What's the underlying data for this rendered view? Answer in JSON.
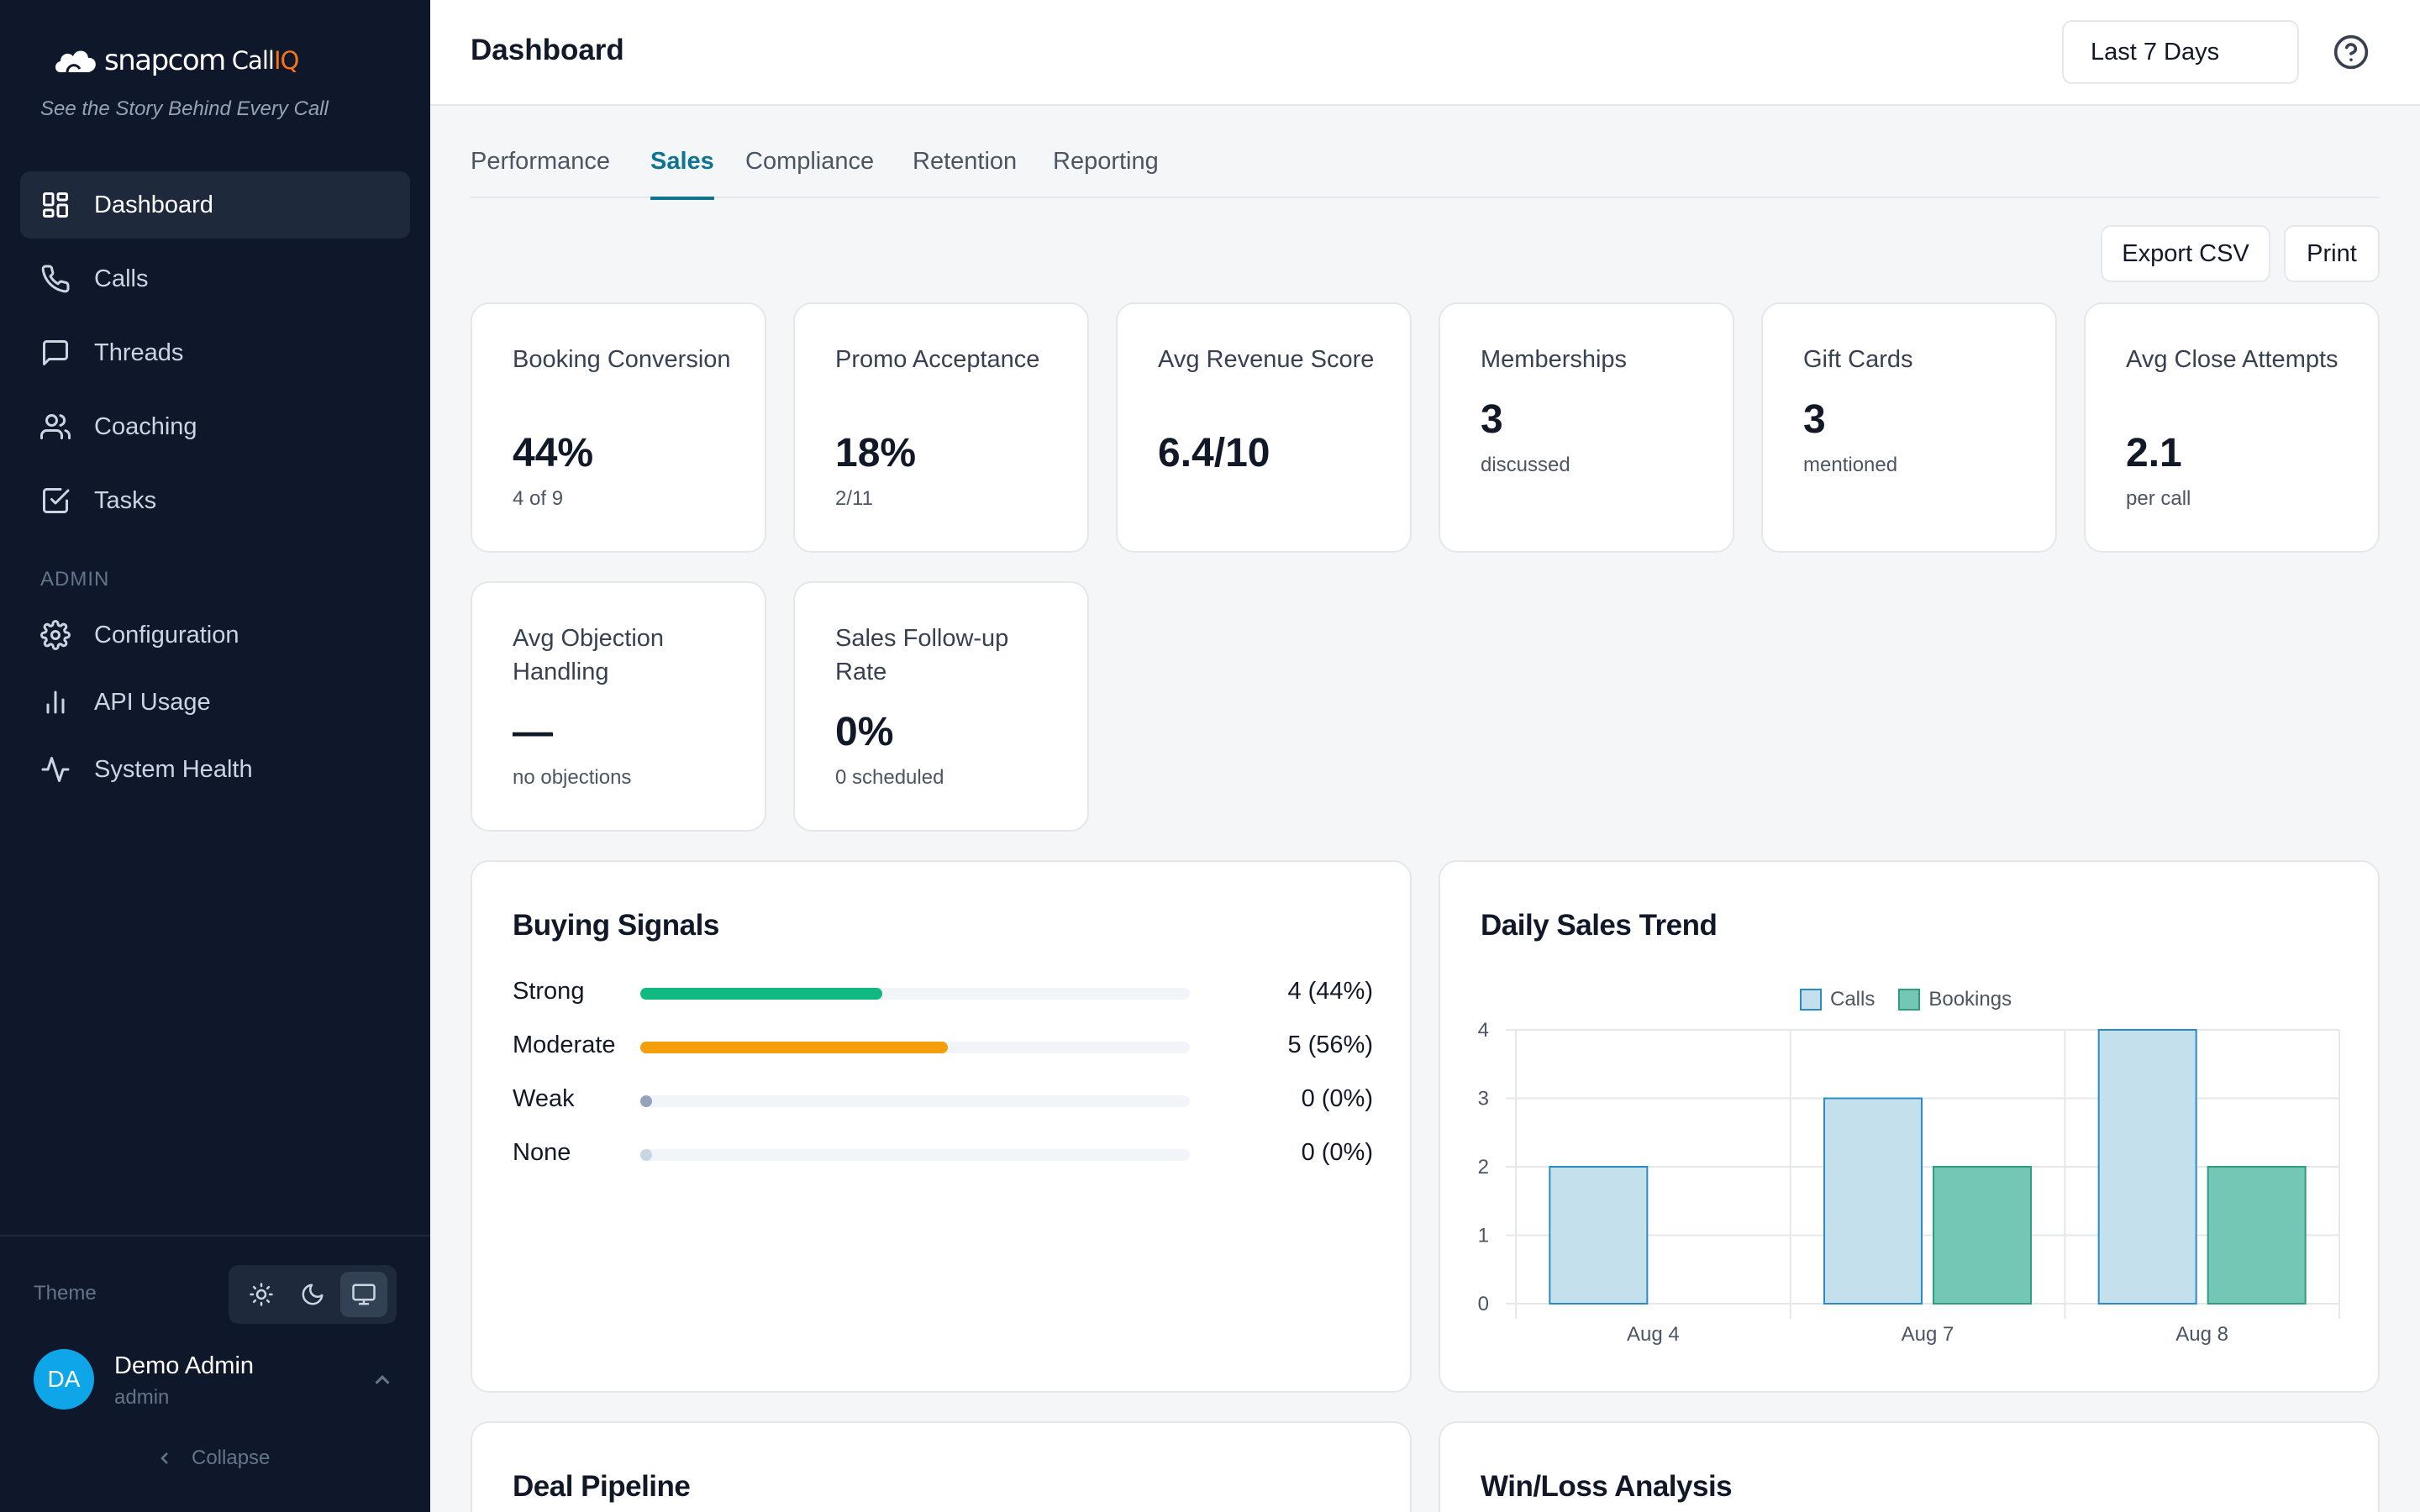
{
  "brand": {
    "name": "snapcom",
    "product_call": "Call",
    "product_iq": "IQ",
    "tagline": "See the Story Behind Every Call"
  },
  "sidebar": {
    "items": [
      {
        "label": "Dashboard",
        "icon": "dashboard-grid-icon",
        "active": true
      },
      {
        "label": "Calls",
        "icon": "phone-icon"
      },
      {
        "label": "Threads",
        "icon": "message-square-icon"
      },
      {
        "label": "Coaching",
        "icon": "users-icon"
      },
      {
        "label": "Tasks",
        "icon": "check-square-icon"
      }
    ],
    "admin_label": "ADMIN",
    "admin_items": [
      {
        "label": "Configuration",
        "icon": "gear-icon"
      },
      {
        "label": "API Usage",
        "icon": "bar-chart-icon"
      },
      {
        "label": "System Health",
        "icon": "activity-icon"
      }
    ],
    "theme_label": "Theme",
    "theme_options": [
      "sun-icon",
      "moon-icon",
      "monitor-icon"
    ],
    "theme_selected": "monitor-icon",
    "user": {
      "initials": "DA",
      "name": "Demo Admin",
      "role": "admin"
    },
    "collapse_label": "Collapse"
  },
  "header": {
    "title": "Dashboard",
    "date_range": "Last 7 Days"
  },
  "tabs": [
    {
      "label": "Performance"
    },
    {
      "label": "Sales",
      "active": true
    },
    {
      "label": "Compliance"
    },
    {
      "label": "Retention"
    },
    {
      "label": "Reporting"
    }
  ],
  "actions": {
    "export": "Export CSV",
    "print": "Print"
  },
  "kpis": [
    {
      "label": "Booking Conversion",
      "value": "44%",
      "sub": "4 of 9"
    },
    {
      "label": "Promo Acceptance",
      "value": "18%",
      "sub": "2/11"
    },
    {
      "label": "Avg Revenue Score",
      "value": "6.4/10",
      "sub": ""
    },
    {
      "label": "Memberships",
      "value": "3",
      "sub": "discussed"
    },
    {
      "label": "Gift Cards",
      "value": "3",
      "sub": "mentioned"
    },
    {
      "label": "Avg Close Attempts",
      "value": "2.1",
      "sub": "per call"
    },
    {
      "label": "Avg Objection Handling",
      "value": "—",
      "sub": "no objections"
    },
    {
      "label": "Sales Follow-up Rate",
      "value": "0%",
      "sub": "0 scheduled"
    }
  ],
  "buying_signals": {
    "title": "Buying Signals",
    "rows": [
      {
        "label": "Strong",
        "value": "4 (44%)",
        "fraction": 0.44,
        "color": "#10b981"
      },
      {
        "label": "Moderate",
        "value": "5 (56%)",
        "fraction": 0.56,
        "color": "#f59e0b"
      },
      {
        "label": "Weak",
        "value": "0 (0%)",
        "fraction": 0,
        "color": "#94a3b8"
      },
      {
        "label": "None",
        "value": "0 (0%)",
        "fraction": 0,
        "color": "#cbd5e1"
      }
    ]
  },
  "daily_trend": {
    "title": "Daily Sales Trend"
  },
  "chart_data": {
    "type": "bar",
    "categories": [
      "Aug 4",
      "Aug 7",
      "Aug 8"
    ],
    "series": [
      {
        "name": "Calls",
        "values": [
          2,
          3,
          4
        ],
        "fill": "#c3e0ec",
        "stroke": "#2b8cc4"
      },
      {
        "name": "Bookings",
        "values": [
          0,
          2,
          2
        ],
        "fill": "#74c7b4",
        "stroke": "#2e9e7f"
      }
    ],
    "ylim": [
      0,
      4
    ],
    "yticks": [
      "0",
      "1",
      "2",
      "3",
      "4"
    ],
    "grid": true,
    "legend": "top-center"
  },
  "bottom_panels": {
    "left_title": "Deal Pipeline",
    "right_title": "Win/Loss Analysis"
  }
}
